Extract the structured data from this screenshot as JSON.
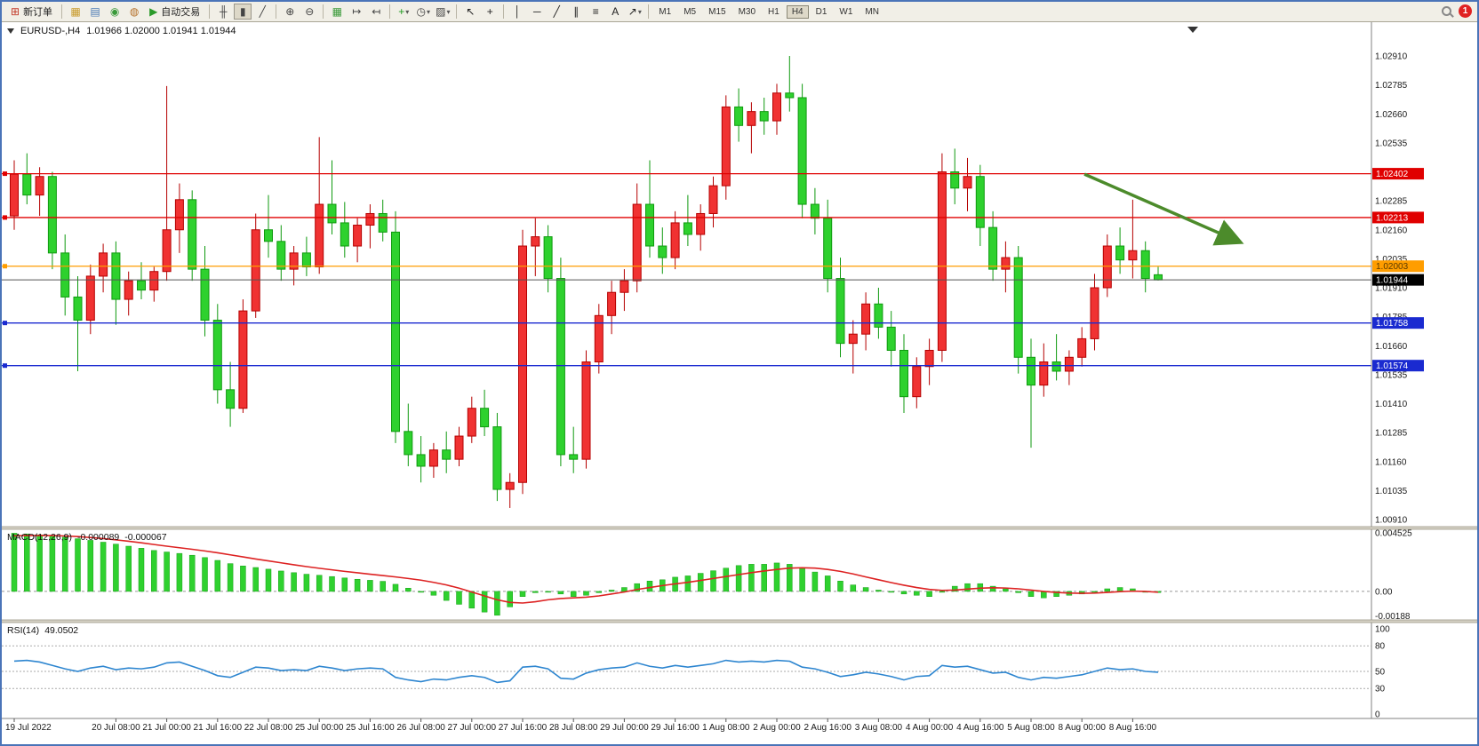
{
  "window": {
    "badge": "1",
    "frame_color": "#4a74b8"
  },
  "toolbar": {
    "dropdown_glyph": "▾",
    "items": [
      {
        "t": "btn",
        "name": "new-order-button",
        "g": "⊞",
        "c": "#c23a2a",
        "label": "新订单"
      },
      {
        "t": "sep"
      },
      {
        "t": "ico",
        "name": "new-chart-icon",
        "g": "▦",
        "c": "#c89a2a"
      },
      {
        "t": "ico",
        "name": "profiles-icon",
        "g": "▤",
        "c": "#4a7ab5"
      },
      {
        "t": "ico",
        "name": "market-watch-icon",
        "g": "◉",
        "c": "#3a9a3a"
      },
      {
        "t": "ico",
        "name": "navigator-icon",
        "g": "◍",
        "c": "#b5702a"
      },
      {
        "t": "btn",
        "name": "auto-trading-button",
        "g": "▶",
        "c": "#2a9a2a",
        "label": "自动交易"
      },
      {
        "t": "sep"
      },
      {
        "t": "ico",
        "name": "bar-chart-icon",
        "g": "╫",
        "c": "#444"
      },
      {
        "t": "ico",
        "name": "candlestick-chart-icon",
        "g": "▮",
        "c": "#444",
        "active": true
      },
      {
        "t": "ico",
        "name": "line-chart-icon",
        "g": "╱",
        "c": "#444"
      },
      {
        "t": "sep"
      },
      {
        "t": "ico",
        "name": "zoom-in-icon",
        "g": "⊕",
        "c": "#444"
      },
      {
        "t": "ico",
        "name": "zoom-out-icon",
        "g": "⊖",
        "c": "#444"
      },
      {
        "t": "sep"
      },
      {
        "t": "ico",
        "name": "tile-windows-icon",
        "g": "▦",
        "c": "#3a9a3a"
      },
      {
        "t": "ico",
        "name": "auto-scroll-icon",
        "g": "↦",
        "c": "#444"
      },
      {
        "t": "ico",
        "name": "chart-shift-icon",
        "g": "↤",
        "c": "#444"
      },
      {
        "t": "sep"
      },
      {
        "t": "drop",
        "name": "indicators-button",
        "g": "+",
        "c": "#1f9a1f"
      },
      {
        "t": "drop",
        "name": "periods-button",
        "g": "◷",
        "c": "#444"
      },
      {
        "t": "drop",
        "name": "templates-button",
        "g": "▨",
        "c": "#444"
      },
      {
        "t": "sep"
      },
      {
        "t": "ico",
        "name": "cursor-icon",
        "g": "↖",
        "c": "#222"
      },
      {
        "t": "ico",
        "name": "crosshair-icon",
        "g": "+",
        "c": "#222"
      },
      {
        "t": "sep"
      },
      {
        "t": "ico",
        "name": "vertical-line-icon",
        "g": "│",
        "c": "#222"
      },
      {
        "t": "ico",
        "name": "horizontal-line-icon",
        "g": "─",
        "c": "#222"
      },
      {
        "t": "ico",
        "name": "trendline-icon",
        "g": "╱",
        "c": "#222"
      },
      {
        "t": "ico",
        "name": "equidistant-channel-icon",
        "g": "∥",
        "c": "#222"
      },
      {
        "t": "ico",
        "name": "fibonacci-icon",
        "g": "≡",
        "c": "#222"
      },
      {
        "t": "ico",
        "name": "text-icon",
        "g": "A",
        "c": "#222"
      },
      {
        "t": "drop",
        "name": "arrows-icon",
        "g": "↗",
        "c": "#222"
      },
      {
        "t": "sep"
      }
    ],
    "timeframes": [
      "M1",
      "M5",
      "M15",
      "M30",
      "H1",
      "H4",
      "D1",
      "W1",
      "MN"
    ],
    "active_timeframe": "H4"
  },
  "chart": {
    "title_symbol": "EURUSD-,H4",
    "title_ohlc": "1.01966 1.02000 1.01941 1.01944"
  },
  "chart_data": {
    "type": "candlestick",
    "symbol": "EURUSD-",
    "timeframe": "H4",
    "current_bar": {
      "open": "1.01966",
      "high": "1.02000",
      "low": "1.01941",
      "close": "1.01944"
    },
    "colors": {
      "up": "#f03232",
      "up_stroke": "#b50000",
      "down": "#2ed12e",
      "down_stroke": "#0f9a0f",
      "macd_hist": "#2fd12f",
      "macd_signal": "#dd2222",
      "rsi_line": "#2e86d0",
      "arrow": "#4c8b2b"
    },
    "price_axis": {
      "top": 1.0291,
      "bottom": 1.0091,
      "step": 0.00125,
      "labels": [
        "1.02910",
        "1.02785",
        "1.02660",
        "1.02535",
        "1.02410",
        "1.02285",
        "1.02160",
        "1.02035",
        "1.01910",
        "1.01785",
        "1.01660",
        "1.01535",
        "1.01410",
        "1.01285",
        "1.01160",
        "1.01035",
        "1.00910"
      ]
    },
    "hlines": [
      {
        "price": 1.02402,
        "label": "1.02402",
        "color": "#e00000",
        "tag_bg": "#e00000",
        "tag_fg": "#ffffff"
      },
      {
        "price": 1.02213,
        "label": "1.02213",
        "color": "#e00000",
        "tag_bg": "#e00000",
        "tag_fg": "#ffffff"
      },
      {
        "price": 1.02003,
        "label": "1.02003",
        "color": "#ff9d00",
        "tag_bg": "#ff9d00",
        "tag_fg": "#5a3a00"
      },
      {
        "price": 1.01944,
        "label": "1.01944",
        "color": "#555555",
        "tag_bg": "#000000",
        "tag_fg": "#ffffff",
        "kind": "bid"
      },
      {
        "price": 1.01758,
        "label": "1.01758",
        "color": "#1a2ad0",
        "tag_bg": "#1a2ad0",
        "tag_fg": "#ffffff"
      },
      {
        "price": 1.01574,
        "label": "1.01574",
        "color": "#1a2ad0",
        "tag_bg": "#1a2ad0",
        "tag_fg": "#ffffff"
      }
    ],
    "arrow": {
      "from_bar": 84.2,
      "from_price": 1.024,
      "to_bar": 96.3,
      "to_price": 1.0211
    },
    "x_labels": [
      "19 Jul 2022",
      "20 Jul 08:00",
      "21 Jul 00:00",
      "21 Jul 16:00",
      "22 Jul 08:00",
      "25 Jul 00:00",
      "25 Jul 16:00",
      "26 Jul 08:00",
      "27 Jul 00:00",
      "27 Jul 16:00",
      "28 Jul 08:00",
      "29 Jul 00:00",
      "29 Jul 16:00",
      "1 Aug 08:00",
      "2 Aug 00:00",
      "2 Aug 16:00",
      "3 Aug 08:00",
      "4 Aug 00:00",
      "4 Aug 16:00",
      "5 Aug 08:00",
      "8 Aug 00:00",
      "8 Aug 16:00"
    ],
    "candles": [
      [
        1.0222,
        1.0246,
        1.0216,
        1.024
      ],
      [
        1.024,
        1.0249,
        1.0227,
        1.0231
      ],
      [
        1.0231,
        1.0243,
        1.0222,
        1.0239
      ],
      [
        1.0239,
        1.0241,
        1.0199,
        1.0206
      ],
      [
        1.0206,
        1.0214,
        1.0179,
        1.0187
      ],
      [
        1.0187,
        1.0196,
        1.0155,
        1.0177
      ],
      [
        1.0177,
        1.0201,
        1.0171,
        1.0196
      ],
      [
        1.0196,
        1.021,
        1.0189,
        1.0206
      ],
      [
        1.0206,
        1.0211,
        1.0175,
        1.0186
      ],
      [
        1.0186,
        1.0198,
        1.0179,
        1.0194
      ],
      [
        1.0194,
        1.0202,
        1.0186,
        1.019
      ],
      [
        1.019,
        1.02,
        1.0185,
        1.0198
      ],
      [
        1.0198,
        1.0278,
        1.0194,
        1.0216
      ],
      [
        1.0216,
        1.0236,
        1.0206,
        1.0229
      ],
      [
        1.0229,
        1.0233,
        1.0194,
        1.0199
      ],
      [
        1.0199,
        1.0209,
        1.017,
        1.0177
      ],
      [
        1.0177,
        1.0184,
        1.0141,
        1.0147
      ],
      [
        1.0147,
        1.0159,
        1.0131,
        1.0139
      ],
      [
        1.0139,
        1.0186,
        1.0137,
        1.0181
      ],
      [
        1.0181,
        1.0223,
        1.0178,
        1.0216
      ],
      [
        1.0216,
        1.0231,
        1.0204,
        1.0211
      ],
      [
        1.0211,
        1.0218,
        1.0194,
        1.0199
      ],
      [
        1.0199,
        1.0209,
        1.0192,
        1.0206
      ],
      [
        1.0206,
        1.0213,
        1.0196,
        1.02
      ],
      [
        1.02,
        1.0256,
        1.0197,
        1.0227
      ],
      [
        1.0227,
        1.0246,
        1.0214,
        1.0219
      ],
      [
        1.0219,
        1.0228,
        1.0204,
        1.0209
      ],
      [
        1.0209,
        1.0221,
        1.0202,
        1.0218
      ],
      [
        1.0218,
        1.0227,
        1.0208,
        1.0223
      ],
      [
        1.0223,
        1.0229,
        1.0211,
        1.0215
      ],
      [
        1.0215,
        1.0224,
        1.0124,
        1.0129
      ],
      [
        1.0129,
        1.0141,
        1.0114,
        1.0119
      ],
      [
        1.0119,
        1.0127,
        1.0107,
        1.0114
      ],
      [
        1.0114,
        1.0124,
        1.0109,
        1.0121
      ],
      [
        1.0121,
        1.0129,
        1.0111,
        1.0117
      ],
      [
        1.0117,
        1.0131,
        1.0114,
        1.0127
      ],
      [
        1.0127,
        1.0144,
        1.0124,
        1.0139
      ],
      [
        1.0139,
        1.0147,
        1.0127,
        1.0131
      ],
      [
        1.0131,
        1.0137,
        1.0099,
        1.0104
      ],
      [
        1.0104,
        1.0111,
        1.0096,
        1.0107
      ],
      [
        1.0107,
        1.0216,
        1.0102,
        1.0209
      ],
      [
        1.0209,
        1.0221,
        1.0196,
        1.0213
      ],
      [
        1.0213,
        1.0218,
        1.0189,
        1.0195
      ],
      [
        1.0195,
        1.0204,
        1.0114,
        1.0119
      ],
      [
        1.0119,
        1.0131,
        1.0111,
        1.0117
      ],
      [
        1.0117,
        1.0164,
        1.0113,
        1.0159
      ],
      [
        1.0159,
        1.0184,
        1.0154,
        1.0179
      ],
      [
        1.0179,
        1.0194,
        1.0171,
        1.0189
      ],
      [
        1.0189,
        1.0199,
        1.0181,
        1.0194
      ],
      [
        1.0194,
        1.0236,
        1.0189,
        1.0227
      ],
      [
        1.0227,
        1.0246,
        1.0204,
        1.0209
      ],
      [
        1.0209,
        1.0217,
        1.0197,
        1.0204
      ],
      [
        1.0204,
        1.0224,
        1.0199,
        1.0219
      ],
      [
        1.0219,
        1.0231,
        1.0209,
        1.0214
      ],
      [
        1.0214,
        1.0227,
        1.0207,
        1.0223
      ],
      [
        1.0223,
        1.0239,
        1.0217,
        1.0235
      ],
      [
        1.0235,
        1.0274,
        1.0229,
        1.0269
      ],
      [
        1.0269,
        1.0277,
        1.0254,
        1.0261
      ],
      [
        1.0261,
        1.0271,
        1.0249,
        1.0267
      ],
      [
        1.0267,
        1.0273,
        1.0257,
        1.0263
      ],
      [
        1.0263,
        1.0279,
        1.0257,
        1.0275
      ],
      [
        1.0275,
        1.0291,
        1.0267,
        1.0273
      ],
      [
        1.0273,
        1.0279,
        1.0221,
        1.0227
      ],
      [
        1.0227,
        1.0234,
        1.0214,
        1.0221
      ],
      [
        1.0221,
        1.0229,
        1.0189,
        1.0195
      ],
      [
        1.0195,
        1.0204,
        1.0161,
        1.0167
      ],
      [
        1.0167,
        1.0177,
        1.0154,
        1.0171
      ],
      [
        1.0171,
        1.0189,
        1.0164,
        1.0184
      ],
      [
        1.0184,
        1.0191,
        1.0169,
        1.0174
      ],
      [
        1.0174,
        1.0181,
        1.0157,
        1.0164
      ],
      [
        1.0164,
        1.0171,
        1.0137,
        1.0144
      ],
      [
        1.0144,
        1.0161,
        1.0139,
        1.0157
      ],
      [
        1.0157,
        1.0169,
        1.0149,
        1.0164
      ],
      [
        1.0164,
        1.0249,
        1.0159,
        1.0241
      ],
      [
        1.0241,
        1.0251,
        1.0227,
        1.0234
      ],
      [
        1.0234,
        1.0247,
        1.0224,
        1.0239
      ],
      [
        1.0239,
        1.0244,
        1.0209,
        1.0217
      ],
      [
        1.0217,
        1.0224,
        1.0194,
        1.0199
      ],
      [
        1.0199,
        1.0211,
        1.0189,
        1.0204
      ],
      [
        1.0204,
        1.0209,
        1.0154,
        1.0161
      ],
      [
        1.0161,
        1.0169,
        1.0122,
        1.0149
      ],
      [
        1.0149,
        1.0167,
        1.0144,
        1.0159
      ],
      [
        1.0159,
        1.0171,
        1.0151,
        1.0155
      ],
      [
        1.0155,
        1.0164,
        1.0149,
        1.0161
      ],
      [
        1.0161,
        1.0174,
        1.0157,
        1.0169
      ],
      [
        1.0169,
        1.0197,
        1.0164,
        1.0191
      ],
      [
        1.0191,
        1.0214,
        1.0187,
        1.0209
      ],
      [
        1.0209,
        1.0217,
        1.0197,
        1.0203
      ],
      [
        1.0203,
        1.0229,
        1.0195,
        1.0207
      ],
      [
        1.0207,
        1.0211,
        1.0189,
        1.0195
      ],
      [
        1.01966,
        1.02,
        1.01941,
        1.01944
      ]
    ]
  },
  "macd": {
    "name": "MACD(12,26,9)",
    "value_main": "-0.000089",
    "value_signal": "-0.000067",
    "scale": {
      "max": 0.0046,
      "min": -0.002
    },
    "axis_labels": [
      {
        "value": 0.004525,
        "text": "0.004525"
      },
      {
        "value": 0,
        "text": "0.00"
      },
      {
        "value": -0.00188,
        "text": "-0.00188"
      }
    ],
    "histogram": [
      0.0045,
      0.00445,
      0.00438,
      0.0043,
      0.0042,
      0.00408,
      0.00395,
      0.00381,
      0.00366,
      0.0035,
      0.00334,
      0.00317,
      0.00305,
      0.00294,
      0.0028,
      0.00262,
      0.0024,
      0.00215,
      0.00197,
      0.00185,
      0.00172,
      0.00158,
      0.00145,
      0.00133,
      0.00125,
      0.00115,
      0.00104,
      0.00094,
      0.00086,
      0.00078,
      0.00055,
      0.00025,
      -5e-05,
      -0.0003,
      -0.0007,
      -0.001,
      -0.0013,
      -0.0016,
      -0.00185,
      -0.0012,
      -0.0004,
      -0.0001,
      0,
      -0.0002,
      -0.0004,
      -0.0003,
      -0.0001,
      0.0001,
      0.0003,
      0.0006,
      0.0008,
      0.0009,
      0.0011,
      0.0012,
      0.0014,
      0.0016,
      0.0018,
      0.002,
      0.0021,
      0.0021,
      0.0022,
      0.0021,
      0.0018,
      0.0015,
      0.0012,
      0.0008,
      0.0005,
      0.0003,
      0.0001,
      0,
      -0.0002,
      -0.0003,
      -0.0004,
      0,
      0.0004,
      0.0006,
      0.0006,
      0.0004,
      0.0002,
      -0.0001,
      -0.0004,
      -0.0005,
      -0.0004,
      -0.0003,
      -0.0002,
      0,
      0.0002,
      0.0003,
      0.0002,
      0,
      -8.9e-05
    ],
    "signal": [
      0.0043,
      0.00432,
      0.00433,
      0.00432,
      0.00429,
      0.00424,
      0.00417,
      0.00409,
      0.00399,
      0.00388,
      0.00376,
      0.00363,
      0.0035,
      0.00338,
      0.00326,
      0.00313,
      0.00299,
      0.00283,
      0.00267,
      0.00251,
      0.00236,
      0.00221,
      0.00206,
      0.00192,
      0.00179,
      0.00167,
      0.00155,
      0.00144,
      0.00133,
      0.00123,
      0.00112,
      0.001,
      0.00087,
      0.0007,
      0.0005,
      0.00025,
      -5e-05,
      -0.00035,
      -0.00065,
      -0.00085,
      -0.0009,
      -0.0008,
      -0.00065,
      -0.00055,
      -0.0005,
      -0.00045,
      -0.00035,
      -0.0002,
      -5e-05,
      0.00015,
      0.0003,
      0.00045,
      0.00058,
      0.0007,
      0.00085,
      0.001,
      0.00115,
      0.0013,
      0.00145,
      0.00158,
      0.0017,
      0.0018,
      0.00183,
      0.0018,
      0.0017,
      0.00155,
      0.00135,
      0.00112,
      0.0009,
      0.00068,
      0.00048,
      0.0003,
      0.00015,
      8e-05,
      0.0001,
      0.00018,
      0.00025,
      0.00028,
      0.00026,
      0.0002,
      0.0001,
      0,
      -8e-05,
      -0.00013,
      -0.00015,
      -0.00013,
      -8e-05,
      -2e-05,
      2e-05,
      0,
      -6.7e-05
    ]
  },
  "rsi": {
    "name": "RSI(14)",
    "value": "49.0502",
    "axis_labels": [
      {
        "value": 100,
        "text": "100"
      },
      {
        "value": 80,
        "text": "80"
      },
      {
        "value": 50,
        "text": "50"
      },
      {
        "value": 30,
        "text": "30"
      },
      {
        "value": 0,
        "text": "0"
      }
    ],
    "dashed_levels": [
      80,
      50,
      30
    ],
    "values": [
      62,
      63,
      61,
      57,
      53,
      50,
      54,
      56,
      52,
      54,
      53,
      55,
      60,
      61,
      56,
      51,
      45,
      43,
      49,
      55,
      54,
      51,
      52,
      51,
      56,
      54,
      51,
      53,
      54,
      53,
      43,
      40,
      38,
      41,
      40,
      43,
      45,
      43,
      37,
      39,
      55,
      56,
      53,
      42,
      41,
      48,
      52,
      54,
      55,
      60,
      56,
      54,
      57,
      55,
      57,
      59,
      63,
      61,
      62,
      61,
      63,
      62,
      55,
      53,
      49,
      44,
      46,
      49,
      47,
      44,
      40,
      44,
      45,
      57,
      55,
      56,
      52,
      48,
      49,
      43,
      40,
      43,
      42,
      44,
      46,
      50,
      54,
      52,
      53,
      50,
      49.05
    ]
  }
}
